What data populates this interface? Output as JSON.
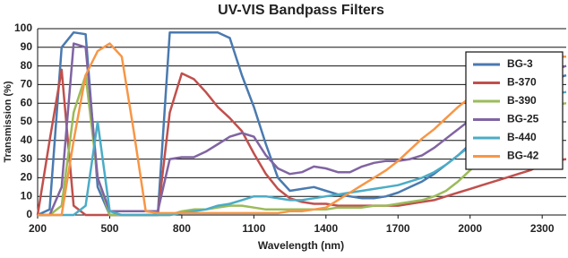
{
  "chart_data": {
    "type": "line",
    "title": "UV-VIS Bandpass Filters",
    "x_label": "Wavelength (nm)",
    "y_label": "Transmission (%)",
    "x": [
      200,
      250,
      300,
      350,
      400,
      450,
      500,
      550,
      600,
      650,
      700,
      750,
      800,
      850,
      900,
      950,
      1000,
      1050,
      1100,
      1150,
      1200,
      1250,
      1300,
      1350,
      1400,
      1450,
      1500,
      1550,
      1600,
      1650,
      1700,
      1750,
      1800,
      1850,
      1900,
      1950,
      2000,
      2050,
      2100,
      2150,
      2200,
      2250,
      2300,
      2350,
      2400
    ],
    "xlim": [
      200,
      2400
    ],
    "xticks": [
      200,
      500,
      800,
      1100,
      1400,
      1700,
      2000,
      2300
    ],
    "ylim": [
      0,
      100
    ],
    "yticks": [
      0,
      10,
      20,
      30,
      40,
      50,
      60,
      70,
      80,
      90,
      100
    ],
    "grid": true,
    "legend": "upper right",
    "series": [
      {
        "name": "BG-3",
        "color": "#4a7ab0",
        "values": [
          0,
          3,
          90,
          98,
          97,
          15,
          0,
          0,
          0,
          0,
          0,
          98,
          98,
          98,
          98,
          98,
          95,
          75,
          58,
          38,
          20,
          13,
          14,
          15,
          13,
          11,
          10,
          9,
          9,
          10,
          12,
          15,
          18,
          22,
          27,
          32,
          38,
          44,
          51,
          57,
          63,
          68,
          71,
          73,
          75
        ]
      },
      {
        "name": "B-370",
        "color": "#c0504d",
        "values": [
          0,
          40,
          78,
          5,
          0,
          0,
          0,
          0,
          0,
          0,
          0,
          55,
          76,
          73,
          66,
          58,
          52,
          45,
          33,
          22,
          14,
          9,
          7,
          6,
          6,
          5,
          5,
          5,
          5,
          5,
          5,
          6,
          7,
          8,
          10,
          12,
          14,
          16,
          18,
          20,
          22,
          24,
          27,
          29,
          30
        ]
      },
      {
        "name": "B-390",
        "color": "#9bbb59",
        "values": [
          0,
          0,
          5,
          55,
          75,
          20,
          0,
          0,
          0,
          0,
          0,
          0,
          2,
          3,
          3,
          4,
          5,
          5,
          4,
          3,
          3,
          3,
          3,
          3,
          3,
          4,
          4,
          4,
          5,
          5,
          6,
          7,
          8,
          10,
          13,
          18,
          24,
          30,
          36,
          42,
          48,
          53,
          57,
          59,
          60
        ]
      },
      {
        "name": "BG-25",
        "color": "#8064a2",
        "values": [
          0,
          0,
          15,
          92,
          90,
          20,
          2,
          2,
          2,
          2,
          2,
          30,
          31,
          31,
          34,
          38,
          42,
          44,
          42,
          32,
          25,
          22,
          23,
          26,
          25,
          23,
          23,
          26,
          28,
          29,
          29,
          30,
          32,
          36,
          41,
          46,
          51,
          56,
          62,
          66,
          70,
          73,
          76,
          78,
          80
        ]
      },
      {
        "name": "B-440",
        "color": "#4bacc6",
        "values": [
          0,
          0,
          0,
          0,
          5,
          50,
          2,
          0,
          0,
          0,
          0,
          0,
          1,
          2,
          3,
          5,
          6,
          8,
          10,
          10,
          9,
          8,
          8,
          9,
          10,
          11,
          12,
          13,
          14,
          15,
          16,
          18,
          20,
          23,
          27,
          32,
          37,
          42,
          47,
          52,
          56,
          60,
          63,
          65,
          66
        ]
      },
      {
        "name": "BG-42",
        "color": "#f79646",
        "values": [
          0,
          0,
          0,
          40,
          75,
          88,
          92,
          85,
          45,
          2,
          1,
          1,
          1,
          1,
          1,
          1,
          1,
          1,
          1,
          1,
          1,
          2,
          2,
          3,
          4,
          8,
          12,
          16,
          20,
          24,
          29,
          35,
          41,
          46,
          52,
          58,
          63,
          68,
          72,
          76,
          79,
          82,
          84,
          85,
          85
        ]
      }
    ]
  }
}
